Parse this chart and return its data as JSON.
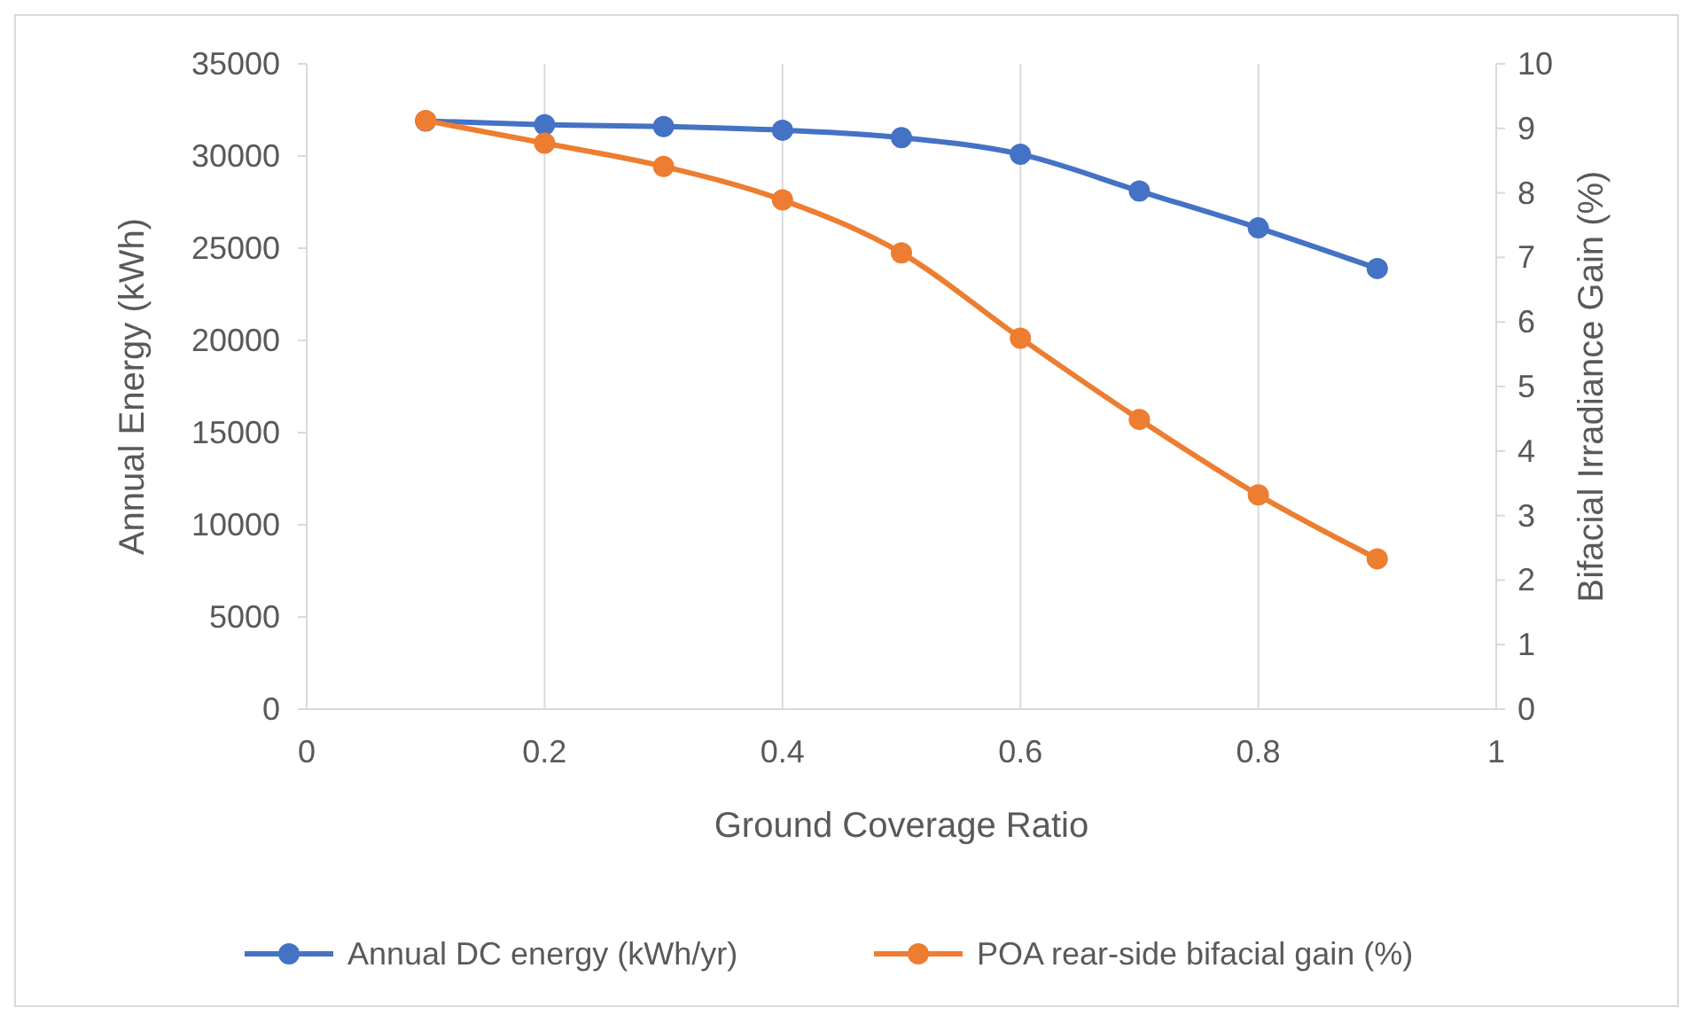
{
  "chart_data": {
    "type": "line",
    "xlabel": "Ground Coverage Ratio",
    "ylabel": "Annual Energy (kWh)",
    "y2label": "Bifacial Irradiance Gain (%)",
    "x": [
      0.1,
      0.2,
      0.3,
      0.4,
      0.5,
      0.6,
      0.7,
      0.8,
      0.9
    ],
    "series": [
      {
        "name": "Annual DC energy (kWh/yr)",
        "color": "#4472c4",
        "values": [
          31900,
          31700,
          31600,
          31400,
          31000,
          30100,
          28100,
          26100,
          23900
        ]
      },
      {
        "name": "POA rear-side bifacial gain (%)",
        "color": "#ed7d31",
        "axis": "y2",
        "values": [
          9.12,
          8.77,
          8.41,
          7.89,
          7.07,
          5.75,
          4.49,
          3.32,
          2.33
        ]
      }
    ],
    "xlim": [
      0,
      1
    ],
    "xticks": [
      0,
      0.2,
      0.4,
      0.6,
      0.8,
      1
    ],
    "ylim": [
      0,
      35000
    ],
    "yticks": [
      0,
      5000,
      10000,
      15000,
      20000,
      25000,
      30000,
      35000
    ],
    "y2lim": [
      0,
      10
    ],
    "y2ticks": [
      0,
      1,
      2,
      3,
      4,
      5,
      6,
      7,
      8,
      9,
      10
    ],
    "grid": "x",
    "legend": "bottom",
    "marker": "circle",
    "line_style": "solid"
  }
}
